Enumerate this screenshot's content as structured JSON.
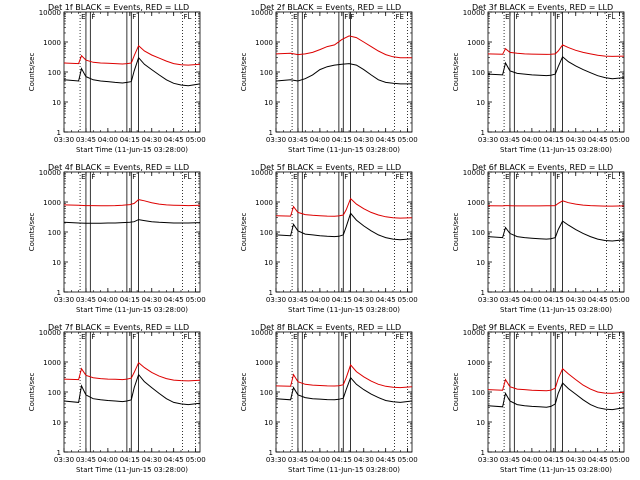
{
  "chart_data": {
    "type": "line",
    "figure_layout": "3x3 grid of log-scale time-series panels",
    "x_axis": {
      "label": "Start Time (11-Jun-15 03:28:00)",
      "ticks": [
        "03:30",
        "03:45",
        "04:00",
        "04:15",
        "04:30",
        "04:45",
        "05:00"
      ],
      "tick_minutes": [
        2,
        17,
        32,
        47,
        62,
        77,
        92
      ],
      "range_minutes": [
        2,
        95
      ]
    },
    "y_axis": {
      "label": "Counts/sec",
      "scale": "log",
      "ylim": [
        1,
        10000
      ],
      "ticks": [
        "1",
        "10",
        "100",
        "1000",
        "10000"
      ]
    },
    "legend_text": "BLACK = Events, RED = LLD",
    "series_colors": {
      "events": "#000000",
      "lld": "#dd0000"
    },
    "solid_markers_minutes": [
      17,
      20,
      45,
      48,
      53
    ],
    "dotted_markers_minutes": [
      13,
      83,
      92
    ],
    "panels": [
      {
        "title": "Det 1f BLACK = Events, RED = LLD",
        "flags": [
          "E",
          "F",
          "F",
          "FL"
        ],
        "time_minutes": [
          2,
          12,
          14,
          17,
          22,
          27,
          32,
          37,
          42,
          45,
          48,
          50,
          53,
          57,
          62,
          67,
          72,
          77,
          82,
          87,
          95
        ],
        "events": [
          55,
          50,
          130,
          70,
          55,
          50,
          48,
          45,
          43,
          45,
          48,
          110,
          300,
          180,
          120,
          80,
          55,
          42,
          37,
          35,
          40
        ],
        "lld": [
          200,
          190,
          350,
          250,
          210,
          200,
          195,
          190,
          185,
          190,
          200,
          350,
          750,
          500,
          370,
          290,
          230,
          190,
          175,
          170,
          180
        ]
      },
      {
        "title": "Det 2f BLACK = Events, RED = LLD",
        "flags": [
          "E",
          "F",
          "FIF",
          "FE"
        ],
        "time_minutes": [
          2,
          12,
          17,
          22,
          27,
          32,
          37,
          42,
          47,
          52,
          57,
          62,
          67,
          72,
          77,
          82,
          87,
          95
        ],
        "events": [
          50,
          55,
          50,
          60,
          80,
          120,
          150,
          170,
          180,
          190,
          170,
          120,
          80,
          55,
          45,
          42,
          40,
          40
        ],
        "lld": [
          400,
          420,
          380,
          400,
          450,
          560,
          700,
          800,
          1200,
          1600,
          1400,
          1000,
          700,
          500,
          380,
          320,
          300,
          300
        ]
      },
      {
        "title": "Det 3f BLACK = Events, RED = LLD",
        "flags": [
          "E",
          "F",
          "F",
          "FL"
        ],
        "time_minutes": [
          2,
          12,
          14,
          17,
          22,
          27,
          32,
          37,
          42,
          45,
          48,
          50,
          53,
          57,
          62,
          67,
          72,
          77,
          82,
          87,
          95
        ],
        "events": [
          85,
          80,
          200,
          110,
          90,
          85,
          80,
          78,
          76,
          78,
          85,
          150,
          320,
          220,
          160,
          120,
          95,
          75,
          65,
          60,
          65
        ],
        "lld": [
          400,
          390,
          600,
          450,
          420,
          400,
          395,
          390,
          385,
          390,
          400,
          500,
          800,
          650,
          530,
          450,
          400,
          360,
          340,
          330,
          340
        ]
      },
      {
        "title": "Det 4f BLACK = Events, RED = LLD",
        "flags": [
          "E",
          "F",
          "F",
          "FL"
        ],
        "time_minutes": [
          2,
          12,
          17,
          22,
          27,
          32,
          37,
          42,
          47,
          50,
          53,
          57,
          62,
          67,
          72,
          77,
          82,
          87,
          95
        ],
        "events": [
          210,
          200,
          195,
          195,
          195,
          200,
          200,
          205,
          210,
          220,
          260,
          240,
          220,
          210,
          205,
          200,
          200,
          200,
          205
        ],
        "lld": [
          800,
          780,
          760,
          760,
          750,
          750,
          760,
          780,
          820,
          900,
          1200,
          1100,
          950,
          850,
          800,
          780,
          770,
          760,
          780
        ]
      },
      {
        "title": "Det 5f BLACK = Events, RED = LLD",
        "flags": [
          "E",
          "F",
          "F",
          "FE"
        ],
        "time_minutes": [
          2,
          12,
          14,
          17,
          22,
          27,
          32,
          37,
          42,
          45,
          48,
          50,
          53,
          57,
          62,
          67,
          72,
          77,
          82,
          87,
          95
        ],
        "events": [
          80,
          75,
          180,
          110,
          85,
          80,
          75,
          72,
          70,
          72,
          80,
          150,
          420,
          250,
          160,
          110,
          80,
          65,
          58,
          55,
          60
        ],
        "lld": [
          350,
          340,
          700,
          450,
          380,
          360,
          350,
          340,
          335,
          345,
          370,
          550,
          1300,
          850,
          600,
          450,
          370,
          320,
          300,
          290,
          300
        ]
      },
      {
        "title": "Det 6f BLACK = Events, RED = LLD",
        "flags": [
          "E",
          "F",
          "F",
          "FL"
        ],
        "time_minutes": [
          2,
          12,
          14,
          17,
          22,
          27,
          32,
          37,
          42,
          45,
          48,
          50,
          53,
          57,
          62,
          67,
          72,
          77,
          82,
          87,
          95
        ],
        "events": [
          70,
          65,
          140,
          90,
          70,
          65,
          62,
          60,
          58,
          60,
          65,
          120,
          230,
          170,
          120,
          90,
          70,
          58,
          52,
          50,
          55
        ],
        "lld": [
          750,
          740,
          760,
          750,
          740,
          740,
          740,
          740,
          745,
          750,
          760,
          900,
          1100,
          950,
          850,
          790,
          760,
          740,
          730,
          730,
          740
        ]
      },
      {
        "title": "Det 7f BLACK = Events, RED = LLD",
        "flags": [
          "E",
          "F",
          "F",
          "FL"
        ],
        "time_minutes": [
          2,
          12,
          14,
          17,
          22,
          27,
          32,
          37,
          42,
          45,
          48,
          50,
          53,
          57,
          62,
          67,
          72,
          77,
          82,
          87,
          95
        ],
        "events": [
          50,
          45,
          160,
          80,
          60,
          55,
          52,
          50,
          48,
          50,
          55,
          140,
          380,
          220,
          140,
          90,
          60,
          45,
          40,
          38,
          42
        ],
        "lld": [
          270,
          260,
          600,
          360,
          300,
          280,
          270,
          265,
          260,
          270,
          290,
          450,
          950,
          650,
          450,
          340,
          280,
          250,
          240,
          235,
          245
        ]
      },
      {
        "title": "Det 8f BLACK = Events, RED = LLD",
        "flags": [
          "E",
          "F",
          "F",
          "FE"
        ],
        "time_minutes": [
          2,
          12,
          14,
          17,
          22,
          27,
          32,
          37,
          42,
          45,
          48,
          50,
          53,
          57,
          62,
          67,
          72,
          77,
          82,
          87,
          95
        ],
        "events": [
          60,
          55,
          140,
          80,
          65,
          60,
          58,
          56,
          55,
          57,
          62,
          120,
          300,
          180,
          120,
          85,
          65,
          52,
          47,
          45,
          50
        ],
        "lld": [
          160,
          155,
          380,
          220,
          180,
          170,
          165,
          160,
          158,
          162,
          175,
          300,
          800,
          480,
          320,
          230,
          180,
          155,
          145,
          140,
          150
        ]
      },
      {
        "title": "Det 9f BLACK = Events, RED = LLD",
        "flags": [
          "E",
          "F",
          "F",
          "FE"
        ],
        "time_minutes": [
          2,
          12,
          14,
          17,
          22,
          27,
          32,
          37,
          42,
          45,
          48,
          50,
          53,
          57,
          62,
          67,
          72,
          77,
          82,
          87,
          95
        ],
        "events": [
          35,
          32,
          90,
          50,
          38,
          35,
          33,
          32,
          31,
          33,
          40,
          90,
          200,
          130,
          85,
          55,
          38,
          30,
          27,
          26,
          30
        ],
        "lld": [
          120,
          115,
          260,
          150,
          125,
          120,
          115,
          112,
          110,
          115,
          135,
          280,
          600,
          400,
          260,
          170,
          125,
          100,
          92,
          90,
          98
        ]
      }
    ]
  }
}
